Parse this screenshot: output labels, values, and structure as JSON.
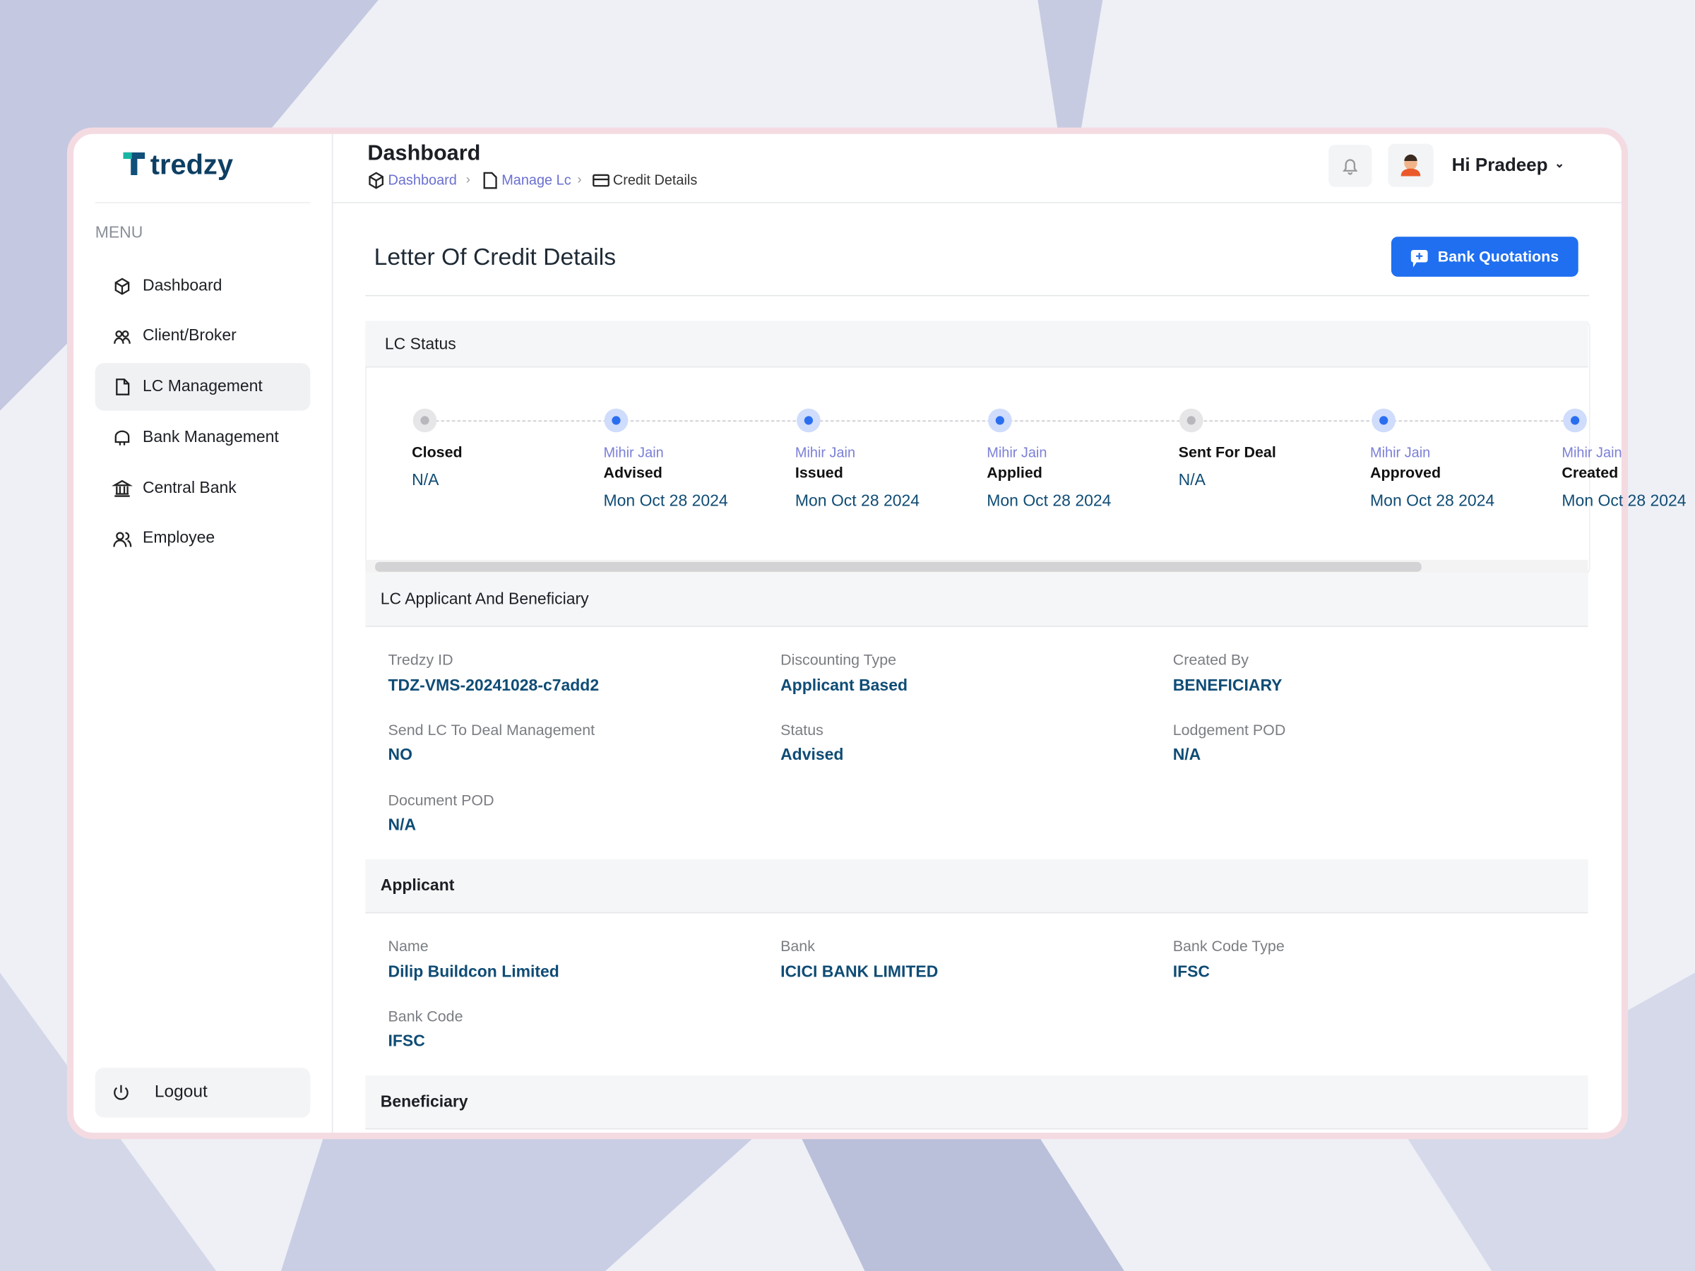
{
  "sidebar": {
    "logo": "tredzy",
    "menu_title": "MENU",
    "menu": [
      "Dashboard",
      "Client/Broker",
      "LC Management",
      "Bank Management",
      "Central Bank",
      "Employee"
    ],
    "active_index": 2,
    "logout": "Logout"
  },
  "header": {
    "title": "Dashboard",
    "breadcrumb": [
      "Dashboard",
      "Manage Lc",
      "Credit Details"
    ],
    "greeting": "Hi Pradeep"
  },
  "page": {
    "title": "Letter Of Credit Details",
    "action": "Bank Quotations"
  },
  "lc_status": {
    "title": "LC Status",
    "steps": [
      {
        "status": "Closed",
        "date": "N/A"
      },
      {
        "name": "Mihir Jain",
        "status": "Advised",
        "date": "Mon Oct 28 2024"
      },
      {
        "name": "Mihir Jain",
        "status": "Issued",
        "date": "Mon Oct 28 2024"
      },
      {
        "name": "Mihir Jain",
        "status": "Applied",
        "date": "Mon Oct 28 2024"
      },
      {
        "status": "Sent For Deal",
        "date": "N/A"
      },
      {
        "name": "Mihir Jain",
        "status": "Approved",
        "date": "Mon Oct 28 2024"
      },
      {
        "name": "Mihir Jain",
        "status": "Created",
        "date": "Mon Oct 28 2024"
      }
    ]
  },
  "sections": [
    {
      "title": "LC Applicant And Beneficiary",
      "fields": [
        {
          "label": "Tredzy ID",
          "value": "TDZ-VMS-20241028-c7add2"
        },
        {
          "label": "Discounting Type",
          "value": "Applicant Based"
        },
        {
          "label": "Created By",
          "value": "BENEFICIARY"
        },
        {
          "label": "Send LC To Deal Management",
          "value": "NO"
        },
        {
          "label": "Status",
          "value": "Advised"
        },
        {
          "label": "Lodgement POD",
          "value": "N/A"
        },
        {
          "label": "Document POD",
          "value": "N/A"
        }
      ]
    },
    {
      "title": "Applicant",
      "fields": [
        {
          "label": "Name",
          "value": "Dilip Buildcon Limited"
        },
        {
          "label": "Bank",
          "value": "ICICI BANK LIMITED"
        },
        {
          "label": "Bank Code Type",
          "value": "IFSC"
        },
        {
          "label": "Bank Code",
          "value": "IFSC"
        }
      ]
    },
    {
      "title": "Beneficiary",
      "fields": []
    }
  ]
}
